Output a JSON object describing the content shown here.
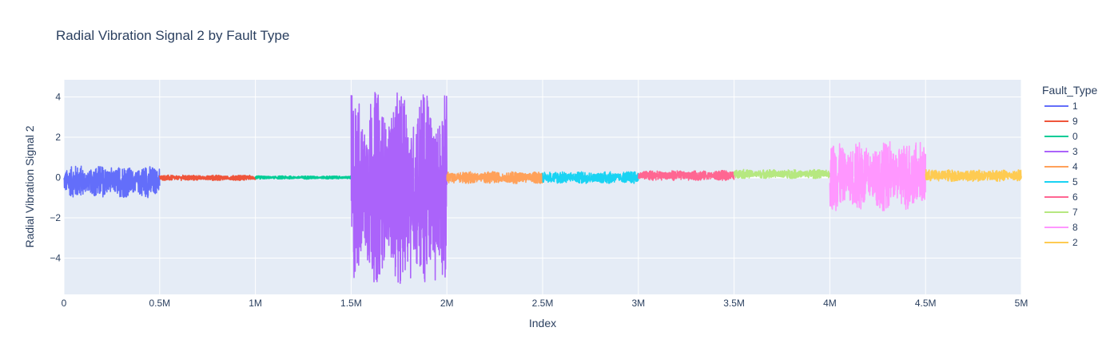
{
  "chart_data": {
    "type": "line",
    "title": "Radial Vibration Signal 2 by Fault Type",
    "xlabel": "Index",
    "ylabel": "Radial Vibration Signal 2",
    "xlim": [
      0,
      5000000
    ],
    "ylim": [
      -5.8,
      4.85
    ],
    "x_ticks": [
      {
        "value": 0,
        "label": "0"
      },
      {
        "value": 500000,
        "label": "0.5M"
      },
      {
        "value": 1000000,
        "label": "1M"
      },
      {
        "value": 1500000,
        "label": "1.5M"
      },
      {
        "value": 2000000,
        "label": "2M"
      },
      {
        "value": 2500000,
        "label": "2.5M"
      },
      {
        "value": 3000000,
        "label": "3M"
      },
      {
        "value": 3500000,
        "label": "3.5M"
      },
      {
        "value": 4000000,
        "label": "4M"
      },
      {
        "value": 4500000,
        "label": "4.5M"
      },
      {
        "value": 5000000,
        "label": "5M"
      }
    ],
    "y_ticks": [
      {
        "value": 4,
        "label": "4"
      },
      {
        "value": 2,
        "label": "2"
      },
      {
        "value": 0,
        "label": "0"
      },
      {
        "value": -2,
        "label": "−2"
      },
      {
        "value": -4,
        "label": "−4"
      }
    ],
    "grid": true,
    "legend_title": "Fault_Type",
    "legend_position": "right",
    "series": [
      {
        "name": "1",
        "color": "#636efa",
        "x_range": [
          0,
          500000
        ],
        "y_min": -1.0,
        "y_max": 0.6
      },
      {
        "name": "9",
        "color": "#ef553b",
        "x_range": [
          500000,
          1000000
        ],
        "y_min": -0.15,
        "y_max": 0.12
      },
      {
        "name": "0",
        "color": "#00cc96",
        "x_range": [
          1000000,
          1500000
        ],
        "y_min": -0.08,
        "y_max": 0.08
      },
      {
        "name": "3",
        "color": "#ab63fa",
        "x_range": [
          1500000,
          2000000
        ],
        "y_min": -5.3,
        "y_max": 4.3
      },
      {
        "name": "4",
        "color": "#ffa15a",
        "x_range": [
          2000000,
          2500000
        ],
        "y_min": -0.3,
        "y_max": 0.3
      },
      {
        "name": "5",
        "color": "#19d3f3",
        "x_range": [
          2500000,
          3000000
        ],
        "y_min": -0.3,
        "y_max": 0.3
      },
      {
        "name": "6",
        "color": "#ff6692",
        "x_range": [
          3000000,
          3500000
        ],
        "y_min": -0.15,
        "y_max": 0.35
      },
      {
        "name": "7",
        "color": "#b6e880",
        "x_range": [
          3500000,
          4000000
        ],
        "y_min": -0.05,
        "y_max": 0.4
      },
      {
        "name": "8",
        "color": "#ff97ff",
        "x_range": [
          4000000,
          4500000
        ],
        "y_min": -1.65,
        "y_max": 1.8
      },
      {
        "name": "2",
        "color": "#fecb52",
        "x_range": [
          4500000,
          5000000
        ],
        "y_min": -0.2,
        "y_max": 0.4
      }
    ]
  }
}
